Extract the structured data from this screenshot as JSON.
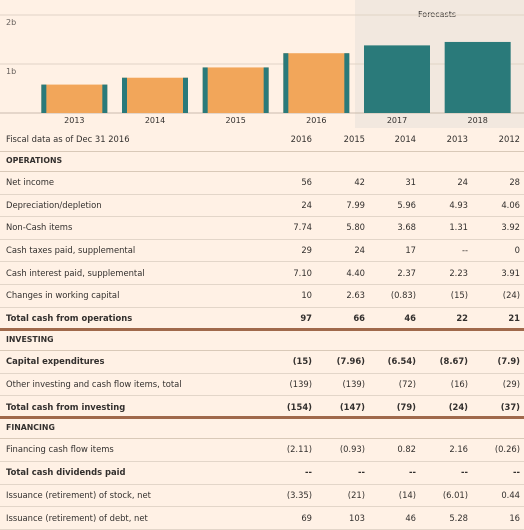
{
  "chart_data": {
    "type": "bar",
    "categories": [
      "2013",
      "2014",
      "2015",
      "2016",
      "2017",
      "2018"
    ],
    "values": [
      0.58,
      0.72,
      0.93,
      1.22,
      1.38,
      1.45
    ],
    "forecast_label": "Forecasts",
    "forecast_categories": [
      "2017",
      "2018"
    ],
    "y_tick_labels": [
      "2b",
      "1b"
    ],
    "ylim": [
      0,
      2
    ],
    "colors": {
      "actual_fill": "#f2a65a",
      "actual_edge": "#2a7a7a",
      "forecast": "#2a7a7a",
      "forecast_bg": "#f2e8df"
    }
  },
  "table": {
    "header_label": "Fiscal data as of Dec 31 2016",
    "columns": [
      "2016",
      "2015",
      "2014",
      "2013",
      "2012"
    ],
    "rows": [
      {
        "type": "section",
        "label": "OPERATIONS"
      },
      {
        "type": "data",
        "label": "Net income",
        "values": [
          "56",
          "42",
          "31",
          "24",
          "28"
        ]
      },
      {
        "type": "data",
        "label": "Depreciation/depletion",
        "values": [
          "24",
          "7.99",
          "5.96",
          "4.93",
          "4.06"
        ]
      },
      {
        "type": "data",
        "label": "Non-Cash items",
        "values": [
          "7.74",
          "5.80",
          "3.68",
          "1.31",
          "3.92"
        ]
      },
      {
        "type": "data",
        "label": "Cash taxes paid, supplemental",
        "values": [
          "29",
          "24",
          "17",
          "--",
          "0"
        ]
      },
      {
        "type": "data",
        "label": "Cash interest paid, supplemental",
        "values": [
          "7.10",
          "4.40",
          "2.37",
          "2.23",
          "3.91"
        ]
      },
      {
        "type": "data",
        "label": "Changes in working capital",
        "values": [
          "10",
          "2.63",
          "(0.83)",
          "(15)",
          "(24)"
        ]
      },
      {
        "type": "total",
        "label": "Total cash from operations",
        "values": [
          "97",
          "66",
          "46",
          "22",
          "21"
        ]
      },
      {
        "type": "section",
        "label": "INVESTING"
      },
      {
        "type": "bold",
        "label": "Capital expenditures",
        "values": [
          "(15)",
          "(7.96)",
          "(6.54)",
          "(8.67)",
          "(7.9)"
        ]
      },
      {
        "type": "data",
        "label": "Other investing and cash flow items, total",
        "values": [
          "(139)",
          "(139)",
          "(72)",
          "(16)",
          "(29)"
        ]
      },
      {
        "type": "total",
        "label": "Total cash from investing",
        "values": [
          "(154)",
          "(147)",
          "(79)",
          "(24)",
          "(37)"
        ]
      },
      {
        "type": "section",
        "label": "FINANCING"
      },
      {
        "type": "data",
        "label": "Financing cash flow items",
        "values": [
          "(2.11)",
          "(0.93)",
          "0.82",
          "2.16",
          "(0.26)"
        ]
      },
      {
        "type": "bold",
        "label": "Total cash dividends paid",
        "values": [
          "--",
          "--",
          "--",
          "--",
          "--"
        ]
      },
      {
        "type": "data",
        "label": "Issuance (retirement) of stock, net",
        "values": [
          "(3.35)",
          "(21)",
          "(14)",
          "(6.01)",
          "0.44"
        ]
      },
      {
        "type": "data",
        "label": "Issuance (retirement) of debt, net",
        "values": [
          "69",
          "103",
          "46",
          "5.28",
          "16"
        ]
      }
    ]
  }
}
